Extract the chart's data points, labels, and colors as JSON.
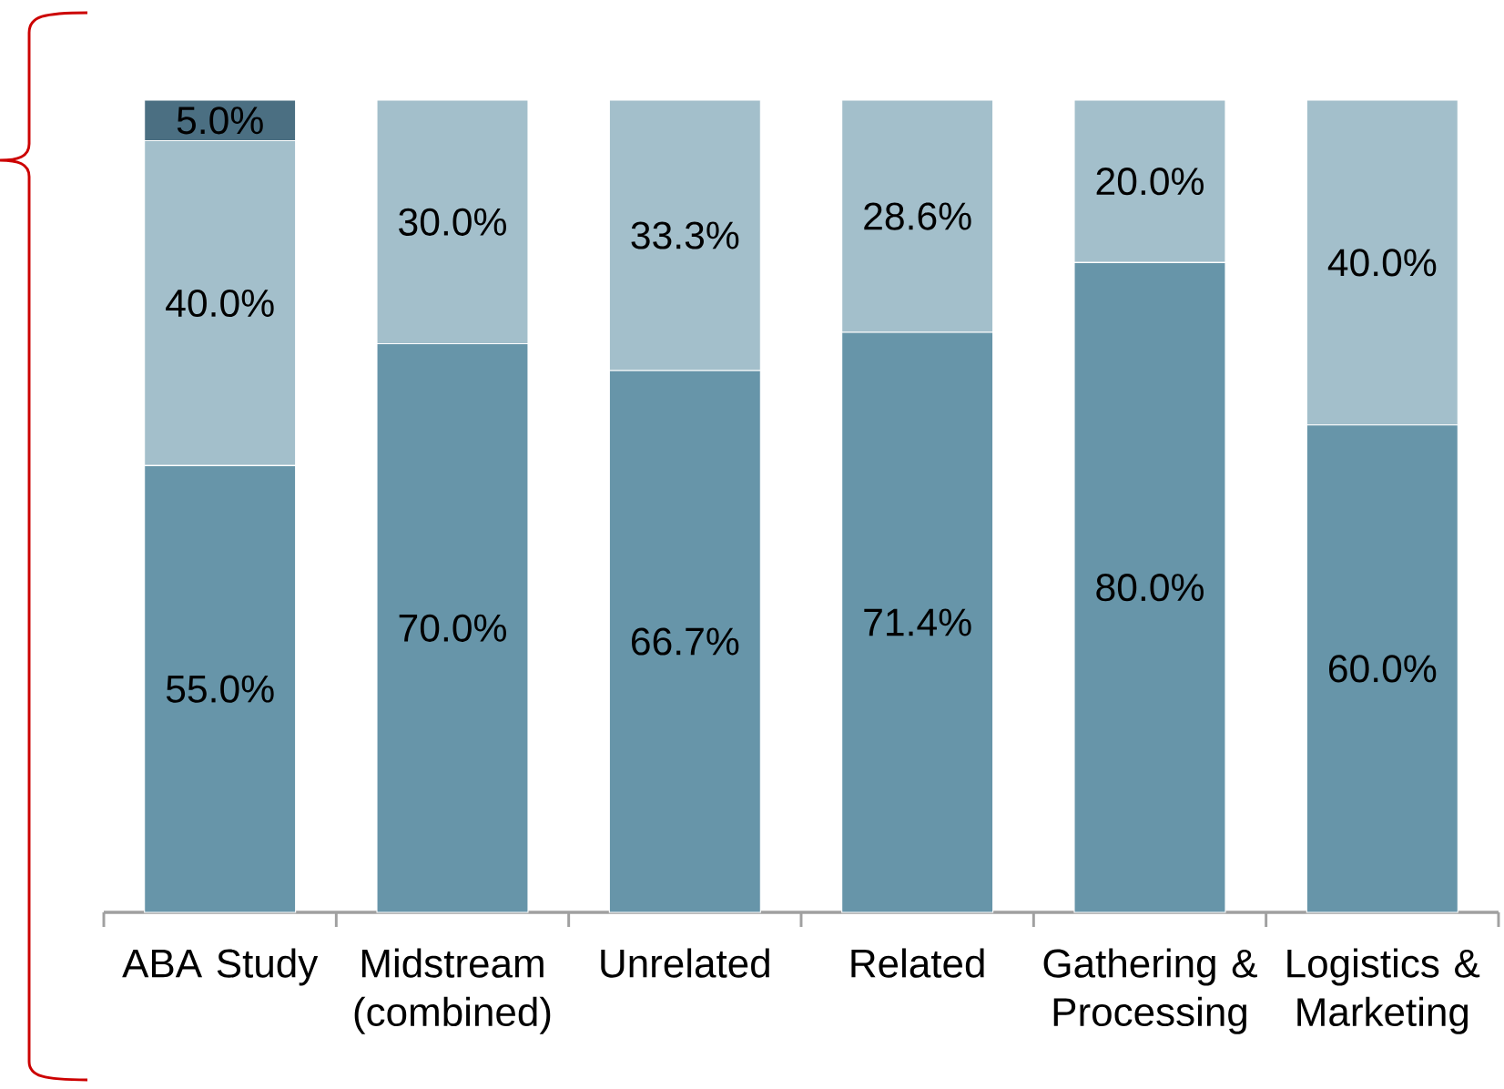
{
  "chart_data": {
    "type": "bar",
    "stacked": true,
    "categories": [
      "ABA Study",
      "Midstream (combined)",
      "Unrelated",
      "Related",
      "Gathering & Processing",
      "Logistics & Marketing"
    ],
    "series": [
      {
        "color": "#6795a9",
        "values": [
          55.0,
          70.0,
          66.7,
          71.4,
          80.0,
          60.0
        ],
        "value_labels": [
          "55.0%",
          "70.0%",
          "66.7%",
          "71.4%",
          "80.0%",
          "60.0%"
        ]
      },
      {
        "color": "#a3bfcb",
        "values": [
          40.0,
          30.0,
          33.3,
          28.6,
          20.0,
          40.0
        ],
        "value_labels": [
          "40.0%",
          "30.0%",
          "33.3%",
          "28.6%",
          "20.0%",
          "40.0%"
        ]
      },
      {
        "color": "#4b6f82",
        "values": [
          5.0,
          null,
          null,
          null,
          null,
          null
        ],
        "value_labels": [
          "5.0%",
          null,
          null,
          null,
          null,
          null
        ]
      }
    ],
    "tick_labels": "x"
  }
}
